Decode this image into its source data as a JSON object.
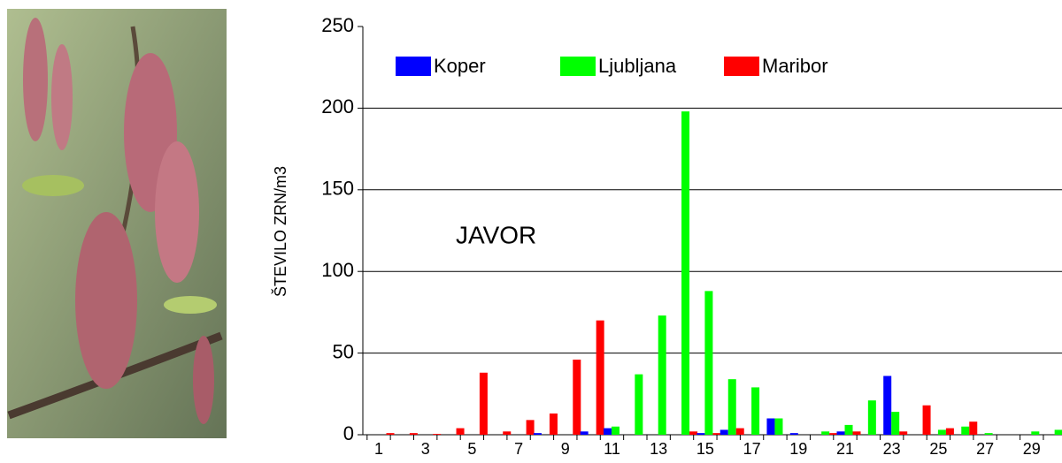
{
  "chart_data": {
    "type": "bar",
    "y_label": "ŠTEVILO ZRN/m3",
    "annotation": "JAVOR",
    "categories": [
      "1",
      null,
      "3",
      null,
      "5",
      null,
      "7",
      null,
      "9",
      null,
      "11",
      null,
      "13",
      null,
      "15",
      null,
      "17",
      null,
      "19",
      null,
      "21",
      null,
      "23",
      null,
      "25",
      null,
      "27",
      null,
      "29",
      null
    ],
    "series": [
      {
        "name": "Koper",
        "color": "#0000ff",
        "values": [
          0,
          0,
          0,
          0,
          0,
          0,
          0,
          1,
          0,
          2,
          4,
          0,
          0,
          0,
          1,
          3,
          0,
          10,
          1,
          0,
          2,
          0,
          36,
          0,
          0,
          0,
          0,
          0,
          0,
          0
        ]
      },
      {
        "name": "Ljubljana",
        "color": "#00ff00",
        "values": [
          0,
          0,
          0,
          0,
          0,
          0,
          0,
          0,
          0,
          0,
          5,
          37,
          73,
          198,
          88,
          34,
          29,
          10,
          0,
          2,
          6,
          21,
          14,
          0,
          3,
          5,
          1,
          0,
          2,
          3
        ]
      },
      {
        "name": "Maribor",
        "color": "#ff0000",
        "values": [
          1,
          1,
          0.5,
          4,
          38,
          2,
          9,
          13,
          46,
          70,
          0,
          0,
          0,
          2,
          1,
          4,
          0,
          0,
          0,
          1,
          2,
          0,
          2,
          18,
          4,
          8,
          0,
          0,
          0,
          0
        ]
      }
    ],
    "ylim": [
      0,
      250
    ],
    "yticks": [
      0,
      50,
      100,
      150,
      200,
      250
    ],
    "grid": true
  }
}
